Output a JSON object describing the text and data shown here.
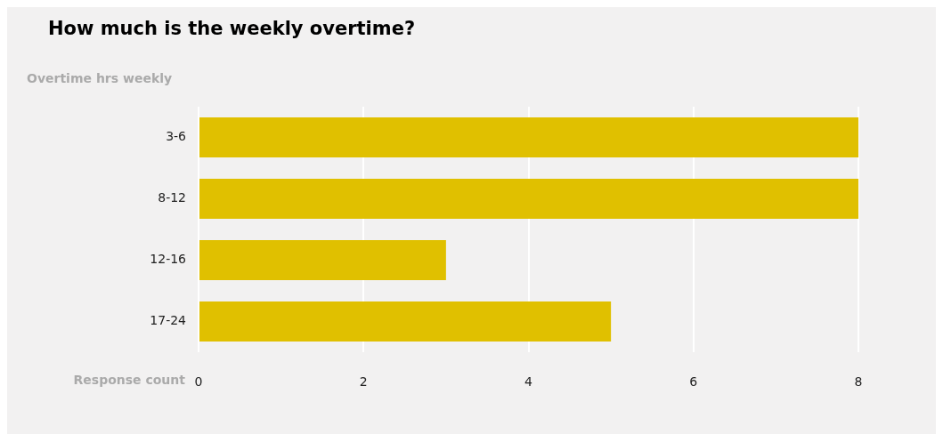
{
  "chart_data": {
    "type": "bar",
    "title": "How much is the weekly overtime?",
    "xlabel": "Response count",
    "ylabel": "Overtime hrs weekly",
    "orientation": "horizontal",
    "categories": [
      "3-6",
      "8-12",
      "12-16",
      "17-24"
    ],
    "series": [
      {
        "color": "#e0c000",
        "values": [
          8,
          8,
          3,
          5
        ]
      }
    ],
    "xlim": [
      0,
      8
    ],
    "xticks": [
      0,
      2,
      4,
      6,
      8
    ],
    "grid": "x",
    "legend": false
  }
}
